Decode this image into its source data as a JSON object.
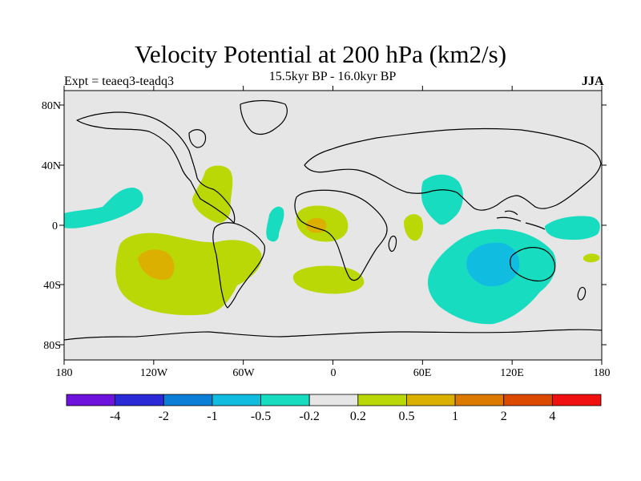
{
  "title": "Velocity Potential at 200 hPa (km2/s)",
  "subtitle": "15.5kyr BP - 16.0kyr BP",
  "experiment": "Expt = teaeq3-teadq3",
  "season": "JJA",
  "map": {
    "projection": "cylindrical equidistant",
    "background_color": "#e6e6e6",
    "lat_ticks": [
      "80N",
      "40N",
      "0",
      "40S",
      "80S"
    ],
    "lon_ticks": [
      "180",
      "120W",
      "60W",
      "0",
      "60E",
      "120E",
      "180"
    ],
    "lon_range": [
      -180,
      180
    ],
    "lat_range": [
      -90,
      90
    ]
  },
  "colorbar": {
    "colors": [
      "#6f12dc",
      "#2a2ad6",
      "#0b7fd8",
      "#10bde0",
      "#18dcc0",
      "#e6e6e6",
      "#b9d806",
      "#dcb000",
      "#dc7a00",
      "#dc4a00",
      "#f01010"
    ],
    "labels": [
      "-4",
      "-2",
      "-1",
      "-0.5",
      "-0.2",
      "0.2",
      "0.5",
      "1",
      "2",
      "4"
    ]
  }
}
